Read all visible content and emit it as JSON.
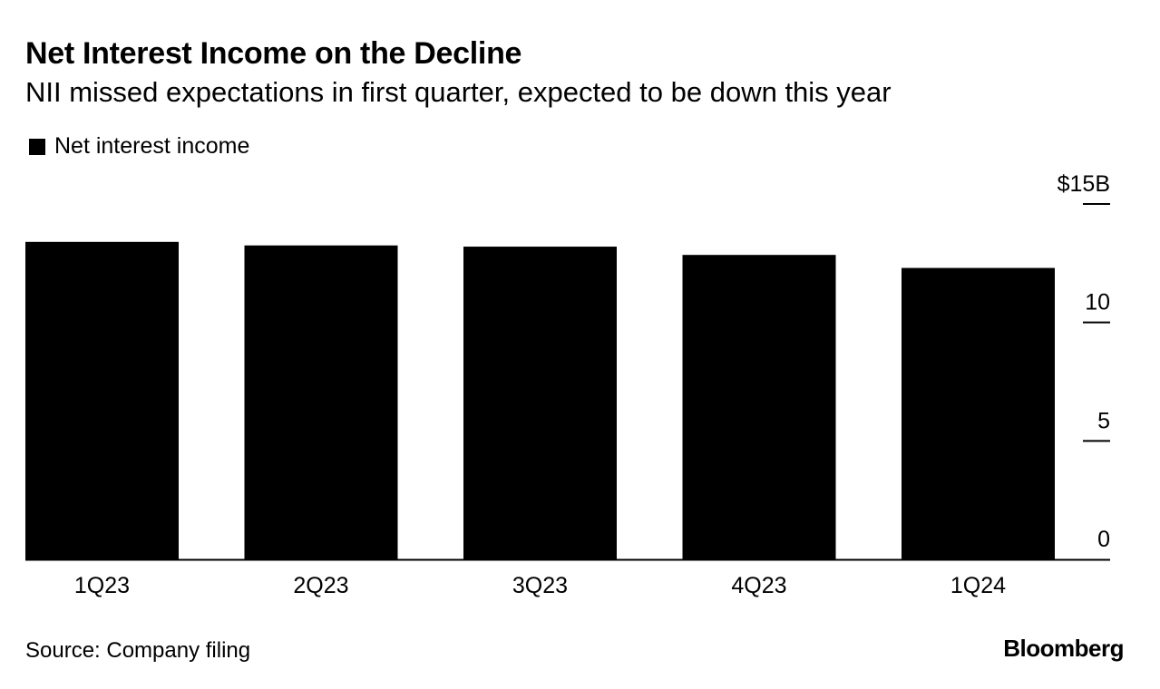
{
  "header": {
    "title": "Net Interest Income on the Decline",
    "subtitle": "NII missed expectations in first quarter, expected to be down this year"
  },
  "footer": {
    "source": "Source: Company filing",
    "brand": "Bloomberg"
  },
  "colors": {
    "bar": "#000000",
    "axis": "#000000",
    "background": "#ffffff"
  },
  "chart_data": {
    "type": "bar",
    "title": "Net Interest Income on the Decline",
    "subtitle": "NII missed expectations in first quarter, expected to be down this year",
    "categories": [
      "1Q23",
      "2Q23",
      "3Q23",
      "4Q23",
      "1Q24"
    ],
    "series": [
      {
        "name": "Net interest income",
        "values": [
          13.4,
          13.25,
          13.2,
          12.85,
          12.3
        ]
      }
    ],
    "ylim": [
      0,
      15
    ],
    "y_ticks": [
      0,
      5,
      10,
      15
    ],
    "y_tick_labels": [
      "0",
      "5",
      "10",
      "$15B"
    ],
    "y_axis_side": "right",
    "xlabel": "",
    "ylabel": "",
    "grid": false,
    "legend_position": "top-left"
  }
}
